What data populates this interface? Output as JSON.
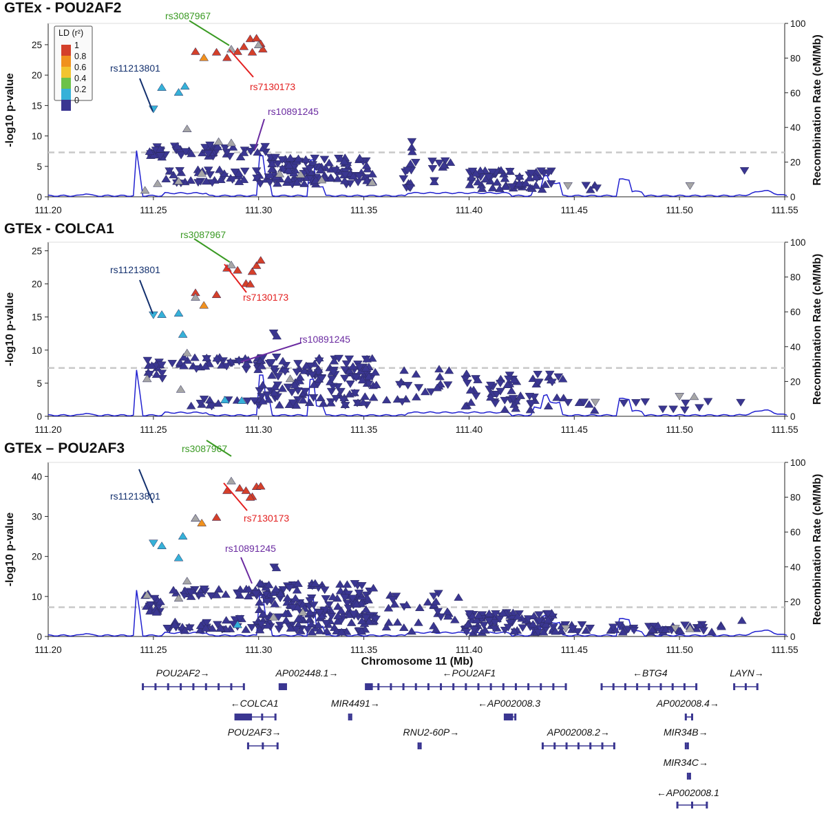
{
  "figure": {
    "x_axis_label": "Chromosome 11 (Mb)",
    "left_axis_label": "-log10 p-value",
    "right_axis_label": "Recombination Rate (cM/Mb)"
  },
  "colors": {
    "ld_0": "#3a3691",
    "ld_0_2": "#36b1d8",
    "ld_0_4": "#6cc24a",
    "ld_0_6": "#f2c42f",
    "ld_0_8": "#f0911e",
    "ld_1": "#d4402a",
    "no_ld": "#a6a6a6",
    "recomb": "#2020d0",
    "threshold": "#c8c8c8",
    "rs3087967": "#3a9a23",
    "rs7130173": "#e32020",
    "rs11213801": "#13306e",
    "rs10891245": "#6a2aa0",
    "gene": "#3a3691"
  },
  "legend": {
    "title": "LD (r²)",
    "labels": [
      "1",
      "0.8",
      "0.6",
      "0.4",
      "0.2",
      "0"
    ]
  },
  "chart_data": [
    {
      "type": "scatter",
      "title": "GTEx - POU2AF2",
      "xlabel": "Chromosome 11 (Mb)",
      "ylabel": "-log10 p-value",
      "ylabel_right": "Recombination Rate (cM/Mb)",
      "xlim": [
        111.2,
        111.55
      ],
      "ylim": [
        0,
        28.5
      ],
      "y2lim": [
        0,
        100
      ],
      "xticks": [
        "111.20",
        "111.25",
        "111.30",
        "111.35",
        "111.40",
        "111.45",
        "111.50",
        "111.55"
      ],
      "yticks": [
        0,
        5,
        10,
        15,
        20,
        25
      ],
      "y2ticks": [
        0,
        20,
        40,
        60,
        80,
        100
      ],
      "threshold": 7.3,
      "annotations": [
        {
          "label": "rs3087967",
          "color": "rs3087967",
          "x": 111.287,
          "y": 24.3
        },
        {
          "label": "rs7130173",
          "color": "rs7130173",
          "x": 111.288,
          "y": 24.0
        },
        {
          "label": "rs11213801",
          "color": "rs11213801",
          "x": 111.25,
          "y": 14.4
        },
        {
          "label": "rs10891245",
          "color": "rs10891245",
          "x": 111.294,
          "y": 7.2
        }
      ],
      "highlight_points": [
        {
          "x": 111.27,
          "y": 23.9,
          "ld": "1"
        },
        {
          "x": 111.274,
          "y": 22.9,
          "ld": "0.8"
        },
        {
          "x": 111.28,
          "y": 23.8,
          "ld": "1"
        },
        {
          "x": 111.285,
          "y": 22.9,
          "ld": "1"
        },
        {
          "x": 111.287,
          "y": 24.3,
          "ld": "none"
        },
        {
          "x": 111.29,
          "y": 23.9,
          "ld": "1"
        },
        {
          "x": 111.293,
          "y": 24.7,
          "ld": "1"
        },
        {
          "x": 111.296,
          "y": 26.0,
          "ld": "1"
        },
        {
          "x": 111.299,
          "y": 26.1,
          "ld": "1"
        },
        {
          "x": 111.301,
          "y": 25.2,
          "ld": "1"
        },
        {
          "x": 111.297,
          "y": 23.8,
          "ld": "1"
        },
        {
          "x": 111.302,
          "y": 24.3,
          "ld": "1"
        },
        {
          "x": 111.3,
          "y": 25.0,
          "ld": "none"
        },
        {
          "x": 111.25,
          "y": 14.4,
          "ld": "0.2",
          "dir": "down"
        },
        {
          "x": 111.254,
          "y": 18.0,
          "ld": "0.2"
        },
        {
          "x": 111.262,
          "y": 17.2,
          "ld": "0.2"
        },
        {
          "x": 111.265,
          "y": 18.2,
          "ld": "0.2"
        },
        {
          "x": 111.266,
          "y": 11.2,
          "ld": "none"
        },
        {
          "x": 111.281,
          "y": 9.1,
          "ld": "none"
        },
        {
          "x": 111.287,
          "y": 8.9,
          "ld": "none"
        },
        {
          "x": 111.246,
          "y": 1.1,
          "ld": "none"
        },
        {
          "x": 111.252,
          "y": 2.2,
          "ld": "none"
        },
        {
          "x": 111.262,
          "y": 2.6,
          "ld": "none"
        },
        {
          "x": 111.273,
          "y": 3.9,
          "ld": "none"
        },
        {
          "x": 111.31,
          "y": 3.8,
          "ld": "none"
        },
        {
          "x": 111.32,
          "y": 3.7,
          "ld": "none"
        },
        {
          "x": 111.33,
          "y": 2.8,
          "ld": "none"
        },
        {
          "x": 111.354,
          "y": 2.4,
          "ld": "none"
        },
        {
          "x": 111.447,
          "y": 1.8,
          "ld": "none",
          "dir": "down"
        },
        {
          "x": 111.505,
          "y": 1.8,
          "ld": "none",
          "dir": "down"
        }
      ],
      "recomb_peaks": [
        [
          111.241,
          42
        ],
        [
          111.302,
          24
        ],
        [
          111.326,
          21
        ],
        [
          111.435,
          12
        ],
        [
          111.473,
          10
        ]
      ]
    },
    {
      "type": "scatter",
      "title": "GTEx - COLCA1",
      "xlabel": "Chromosome 11 (Mb)",
      "ylabel": "-log10 p-value",
      "ylabel_right": "Recombination Rate (cM/Mb)",
      "xlim": [
        111.2,
        111.55
      ],
      "ylim": [
        0,
        26.3
      ],
      "y2lim": [
        0,
        100
      ],
      "xticks": [
        "111.20",
        "111.25",
        "111.30",
        "111.35",
        "111.40",
        "111.45",
        "111.50",
        "111.55"
      ],
      "yticks": [
        0,
        5,
        10,
        15,
        20,
        25
      ],
      "y2ticks": [
        0,
        20,
        40,
        60,
        80,
        100
      ],
      "threshold": 7.3,
      "annotations": [
        {
          "label": "rs3087967",
          "color": "rs3087967",
          "x": 111.287,
          "y": 22.9
        },
        {
          "label": "rs7130173",
          "color": "rs7130173",
          "x": 111.287,
          "y": 22.6
        },
        {
          "label": "rs11213801",
          "color": "rs11213801",
          "x": 111.25,
          "y": 15.3
        },
        {
          "label": "rs10891245",
          "color": "rs10891245",
          "x": 111.294,
          "y": 8.2
        }
      ],
      "highlight_points": [
        {
          "x": 111.27,
          "y": 18.7,
          "ld": "1"
        },
        {
          "x": 111.274,
          "y": 16.8,
          "ld": "0.8"
        },
        {
          "x": 111.28,
          "y": 18.4,
          "ld": "1"
        },
        {
          "x": 111.285,
          "y": 22.4,
          "ld": "1"
        },
        {
          "x": 111.287,
          "y": 22.9,
          "ld": "none"
        },
        {
          "x": 111.29,
          "y": 22.1,
          "ld": "1"
        },
        {
          "x": 111.294,
          "y": 20.1,
          "ld": "1"
        },
        {
          "x": 111.297,
          "y": 21.9,
          "ld": "1"
        },
        {
          "x": 111.299,
          "y": 22.8,
          "ld": "1"
        },
        {
          "x": 111.301,
          "y": 23.6,
          "ld": "1"
        },
        {
          "x": 111.296,
          "y": 20.0,
          "ld": "1"
        },
        {
          "x": 111.27,
          "y": 18.0,
          "ld": "none"
        },
        {
          "x": 111.25,
          "y": 15.3,
          "ld": "0.2",
          "dir": "down"
        },
        {
          "x": 111.254,
          "y": 15.4,
          "ld": "0.2"
        },
        {
          "x": 111.262,
          "y": 15.6,
          "ld": "0.2"
        },
        {
          "x": 111.264,
          "y": 12.4,
          "ld": "0.2"
        },
        {
          "x": 111.266,
          "y": 9.6,
          "ld": "none"
        },
        {
          "x": 111.247,
          "y": 5.7,
          "ld": "none"
        },
        {
          "x": 111.263,
          "y": 4.1,
          "ld": "none"
        },
        {
          "x": 111.292,
          "y": 2.4,
          "ld": "0.2"
        },
        {
          "x": 111.284,
          "y": 2.5,
          "ld": "0.2"
        },
        {
          "x": 111.315,
          "y": 5.7,
          "ld": "none"
        },
        {
          "x": 111.46,
          "y": 2.1,
          "ld": "none",
          "dir": "down"
        },
        {
          "x": 111.5,
          "y": 3.0,
          "ld": "none",
          "dir": "down"
        },
        {
          "x": 111.507,
          "y": 3.0,
          "ld": "none"
        }
      ],
      "recomb_peaks": [
        [
          111.241,
          42
        ],
        [
          111.302,
          24
        ],
        [
          111.326,
          21
        ],
        [
          111.435,
          12
        ],
        [
          111.473,
          10
        ]
      ]
    },
    {
      "type": "scatter",
      "title": "GTEx – POU2AF3",
      "xlabel": "Chromosome 11 (Mb)",
      "ylabel": "-log10 p-value",
      "ylabel_right": "Recombination Rate (cM/Mb)",
      "xlim": [
        111.2,
        111.55
      ],
      "ylim": [
        0,
        43.5
      ],
      "y2lim": [
        0,
        100
      ],
      "xticks": [
        "111.20",
        "111.25",
        "111.30",
        "111.35",
        "111.40",
        "111.45",
        "111.50",
        "111.55"
      ],
      "yticks": [
        0,
        10,
        20,
        30,
        40
      ],
      "y2ticks": [
        0,
        20,
        40,
        60,
        80,
        100
      ],
      "threshold": 7.3,
      "annotations": [
        {
          "label": "rs3087967",
          "color": "rs3087967",
          "x": 111.287,
          "y": 38.9
        },
        {
          "label": "rs7130173",
          "color": "rs7130173",
          "x": 111.285,
          "y": 36.5
        },
        {
          "label": "rs11213801",
          "color": "rs11213801",
          "x": 111.25,
          "y": 23.3
        },
        {
          "label": "rs10891245",
          "color": "rs10891245",
          "x": 111.294,
          "y": 11.5
        }
      ],
      "highlight_points": [
        {
          "x": 111.27,
          "y": 29.6,
          "ld": "1"
        },
        {
          "x": 111.273,
          "y": 28.4,
          "ld": "0.8"
        },
        {
          "x": 111.28,
          "y": 29.8,
          "ld": "1"
        },
        {
          "x": 111.285,
          "y": 36.5,
          "ld": "1"
        },
        {
          "x": 111.287,
          "y": 38.9,
          "ld": "none"
        },
        {
          "x": 111.291,
          "y": 37.1,
          "ld": "1"
        },
        {
          "x": 111.294,
          "y": 36.5,
          "ld": "1"
        },
        {
          "x": 111.297,
          "y": 35.0,
          "ld": "1"
        },
        {
          "x": 111.299,
          "y": 37.5,
          "ld": "1"
        },
        {
          "x": 111.301,
          "y": 37.6,
          "ld": "1"
        },
        {
          "x": 111.296,
          "y": 34.8,
          "ld": "1"
        },
        {
          "x": 111.27,
          "y": 29.6,
          "ld": "none"
        },
        {
          "x": 111.25,
          "y": 23.3,
          "ld": "0.2",
          "dir": "down"
        },
        {
          "x": 111.254,
          "y": 22.7,
          "ld": "0.2"
        },
        {
          "x": 111.262,
          "y": 19.7,
          "ld": "0.2"
        },
        {
          "x": 111.264,
          "y": 25.1,
          "ld": "0.2"
        },
        {
          "x": 111.29,
          "y": 3.0,
          "ld": "0.2"
        },
        {
          "x": 111.266,
          "y": 13.9,
          "ld": "none"
        },
        {
          "x": 111.262,
          "y": 9.6,
          "ld": "none"
        },
        {
          "x": 111.247,
          "y": 10.4,
          "ld": "none"
        },
        {
          "x": 111.321,
          "y": 6.1,
          "ld": "none"
        },
        {
          "x": 111.307,
          "y": 4.9,
          "ld": "none"
        },
        {
          "x": 111.446,
          "y": 2.0,
          "ld": "none",
          "dir": "down"
        },
        {
          "x": 111.498,
          "y": 2.0,
          "ld": "none",
          "dir": "down"
        },
        {
          "x": 111.505,
          "y": 2.0,
          "ld": "none"
        }
      ],
      "recomb_peaks": [
        [
          111.241,
          42
        ],
        [
          111.302,
          24
        ],
        [
          111.326,
          21
        ],
        [
          111.435,
          12
        ],
        [
          111.473,
          10
        ]
      ]
    }
  ],
  "genes": [
    {
      "label": "POU2AF2→",
      "start": 111.245,
      "end": 111.293,
      "row": 0,
      "label_x": 111.264
    },
    {
      "label": "AP002448.1→",
      "start": 111.31,
      "end": 111.313,
      "row": 0,
      "label_x": 111.323
    },
    {
      "label": "←POU2AF1",
      "start": 111.351,
      "end": 111.446,
      "row": 0,
      "label_x": 111.4
    },
    {
      "label": "←BTG4",
      "start": 111.463,
      "end": 111.508,
      "row": 0,
      "label_x": 111.486
    },
    {
      "label": "LAYN→",
      "start": 111.526,
      "end": 111.537,
      "row": 0,
      "label_x": 111.532
    },
    {
      "label": "←COLCA1",
      "start": 111.289,
      "end": 111.308,
      "row": 1,
      "label_x": 111.298
    },
    {
      "label": "MIR4491→",
      "start": 111.343,
      "end": 111.344,
      "row": 1,
      "label_x": 111.346
    },
    {
      "label": "←AP002008.3",
      "start": 111.417,
      "end": 111.422,
      "row": 1,
      "label_x": 111.419
    },
    {
      "label": "AP002008.4→",
      "start": 111.503,
      "end": 111.506,
      "row": 1,
      "label_x": 111.504
    },
    {
      "label": "POU2AF3→",
      "start": 111.295,
      "end": 111.309,
      "row": 2,
      "label_x": 111.298
    },
    {
      "label": "RNU2-60P→",
      "start": 111.376,
      "end": 111.377,
      "row": 2,
      "label_x": 111.382
    },
    {
      "label": "AP002008.2→",
      "start": 111.435,
      "end": 111.469,
      "row": 2,
      "label_x": 111.452
    },
    {
      "label": "MIR34B→",
      "start": 111.503,
      "end": 111.504,
      "row": 2,
      "label_x": 111.503
    },
    {
      "label": "MIR34C→",
      "start": 111.504,
      "end": 111.505,
      "row": 3,
      "label_x": 111.503
    },
    {
      "label": "←AP002008.1",
      "start": 111.499,
      "end": 111.513,
      "row": 4,
      "label_x": 111.504
    }
  ]
}
